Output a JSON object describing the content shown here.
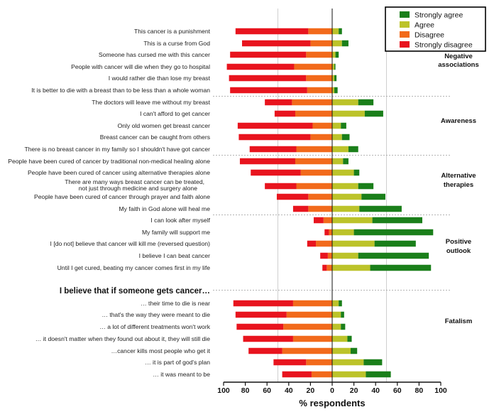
{
  "chart_data": {
    "type": "bar",
    "orientation": "horizontal",
    "stacked": "diverging",
    "xlabel": "% respondents",
    "xlim": [
      -100,
      100
    ],
    "xticks": [
      -100,
      -80,
      -60,
      -40,
      -20,
      0,
      20,
      40,
      60,
      80,
      100
    ],
    "xtick_labels": [
      "100",
      "80",
      "60",
      "40",
      "20",
      "0",
      "20",
      "40",
      "60",
      "80",
      "100"
    ],
    "grid": "vertical dashed lines at ±50",
    "legend_position": "top-right",
    "series": [
      {
        "name": "Strongly agree",
        "color": "#1a7f1a",
        "direction": "positive"
      },
      {
        "name": "Agree",
        "color": "#bcc32a",
        "direction": "positive"
      },
      {
        "name": "Disagree",
        "color": "#f26a1b",
        "direction": "negative"
      },
      {
        "name": "Strongly disagree",
        "color": "#e8141e",
        "direction": "negative"
      }
    ],
    "groups": [
      {
        "label": "Negative associations",
        "label_lines": [
          "Negative",
          "associations"
        ]
      },
      {
        "label": "Awareness",
        "label_lines": [
          "Awareness"
        ]
      },
      {
        "label": "Alternative therapies",
        "label_lines": [
          "Alternative",
          "therapies"
        ]
      },
      {
        "label": "Positive outlook",
        "label_lines": [
          "Positive",
          "outlook"
        ]
      },
      {
        "label": "Fatalism",
        "label_lines": [
          "Fatalism"
        ]
      }
    ],
    "section_heading": "I believe that if someone gets cancer…",
    "rows": [
      {
        "label": "This cancer is a punishment",
        "group": 0,
        "strongly_disagree": 67,
        "disagree": 22,
        "agree": 6,
        "strongly_agree": 3
      },
      {
        "label": "This is a curse from God",
        "group": 0,
        "strongly_disagree": 63,
        "disagree": 20,
        "agree": 9,
        "strongly_agree": 6
      },
      {
        "label": "Someone has cursed me with this cancer",
        "group": 0,
        "strongly_disagree": 70,
        "disagree": 24,
        "agree": 3,
        "strongly_agree": 3
      },
      {
        "label": "People with cancer will die when they go to hospital",
        "group": 0,
        "strongly_disagree": 62,
        "disagree": 35,
        "agree": 2,
        "strongly_agree": 1
      },
      {
        "label": "I would rather die than lose my breast",
        "group": 0,
        "strongly_disagree": 71,
        "disagree": 24,
        "agree": 2,
        "strongly_agree": 2
      },
      {
        "label": "It is better to die with a breast than to be less than a whole woman",
        "group": 0,
        "strongly_disagree": 71,
        "disagree": 23,
        "agree": 2,
        "strongly_agree": 3
      },
      {
        "label": "The doctors will leave me without my breast",
        "group": 1,
        "strongly_disagree": 25,
        "disagree": 37,
        "agree": 24,
        "strongly_agree": 14
      },
      {
        "label": "I can't afford to get cancer",
        "group": 1,
        "strongly_disagree": 19,
        "disagree": 34,
        "agree": 30,
        "strongly_agree": 17
      },
      {
        "label": "Only old women get breast cancer",
        "group": 1,
        "strongly_disagree": 69,
        "disagree": 18,
        "agree": 8,
        "strongly_agree": 5
      },
      {
        "label": "Breast cancer can be caught from others",
        "group": 1,
        "strongly_disagree": 66,
        "disagree": 20,
        "agree": 9,
        "strongly_agree": 7
      },
      {
        "label": "There is no breast cancer in my family so I shouldn't have got cancer",
        "group": 1,
        "strongly_disagree": 43,
        "disagree": 33,
        "agree": 15,
        "strongly_agree": 9
      },
      {
        "label": "People have been cured of cancer by traditional non-medical healing alone",
        "group": 2,
        "strongly_disagree": 51,
        "disagree": 34,
        "agree": 10,
        "strongly_agree": 5
      },
      {
        "label": "People have been cured of cancer using alternative therapies alone",
        "group": 2,
        "strongly_disagree": 46,
        "disagree": 29,
        "agree": 20,
        "strongly_agree": 5
      },
      {
        "label_lines": [
          "There are many ways breast cancer can be treated,",
          "not just through medicine and surgery alone"
        ],
        "label": "There are many ways breast cancer can be treated, not just through medicine and surgery alone",
        "group": 2,
        "strongly_disagree": 29,
        "disagree": 33,
        "agree": 24,
        "strongly_agree": 14
      },
      {
        "label": "People have been cured of cancer through prayer and faith alone",
        "group": 2,
        "strongly_disagree": 29,
        "disagree": 22,
        "agree": 27,
        "strongly_agree": 22
      },
      {
        "label": "My faith in God alone will heal me",
        "group": 2,
        "strongly_disagree": 14,
        "disagree": 22,
        "agree": 25,
        "strongly_agree": 39
      },
      {
        "label": "I can look after myself",
        "group": 3,
        "strongly_disagree": 9,
        "disagree": 8,
        "agree": 37,
        "strongly_agree": 46
      },
      {
        "label": "My family will support me",
        "group": 3,
        "strongly_disagree": 4,
        "disagree": 3,
        "agree": 20,
        "strongly_agree": 73
      },
      {
        "label": "I [do not] believe that cancer will kill me (reversed question)",
        "group": 3,
        "strongly_disagree": 8,
        "disagree": 15,
        "agree": 39,
        "strongly_agree": 38
      },
      {
        "label": "I believe I can beat cancer",
        "group": 3,
        "strongly_disagree": 7,
        "disagree": 4,
        "agree": 24,
        "strongly_agree": 65
      },
      {
        "label": "Until I get cured, beating my cancer comes first in my life",
        "group": 3,
        "strongly_disagree": 4,
        "disagree": 5,
        "agree": 35,
        "strongly_agree": 56
      },
      {
        "label": "… their time to die is near",
        "group": 4,
        "strongly_disagree": 55,
        "disagree": 36,
        "agree": 6,
        "strongly_agree": 3
      },
      {
        "label": "… that's the way they were meant to die",
        "group": 4,
        "strongly_disagree": 47,
        "disagree": 42,
        "agree": 8,
        "strongly_agree": 3
      },
      {
        "label": "… a lot of different treatments won't work",
        "group": 4,
        "strongly_disagree": 43,
        "disagree": 45,
        "agree": 8,
        "strongly_agree": 4
      },
      {
        "label": "… it doesn't matter when they found out about it, they will still die",
        "group": 4,
        "strongly_disagree": 46,
        "disagree": 36,
        "agree": 14,
        "strongly_agree": 4
      },
      {
        "label": "…cancer kills most people who get it",
        "group": 4,
        "strongly_disagree": 31,
        "disagree": 46,
        "agree": 17,
        "strongly_agree": 6
      },
      {
        "label": "… it is part of god's plan",
        "group": 4,
        "strongly_disagree": 30,
        "disagree": 24,
        "agree": 29,
        "strongly_agree": 17
      },
      {
        "label": "… it was meant to be",
        "group": 4,
        "strongly_disagree": 27,
        "disagree": 19,
        "agree": 31,
        "strongly_agree": 23
      }
    ]
  }
}
